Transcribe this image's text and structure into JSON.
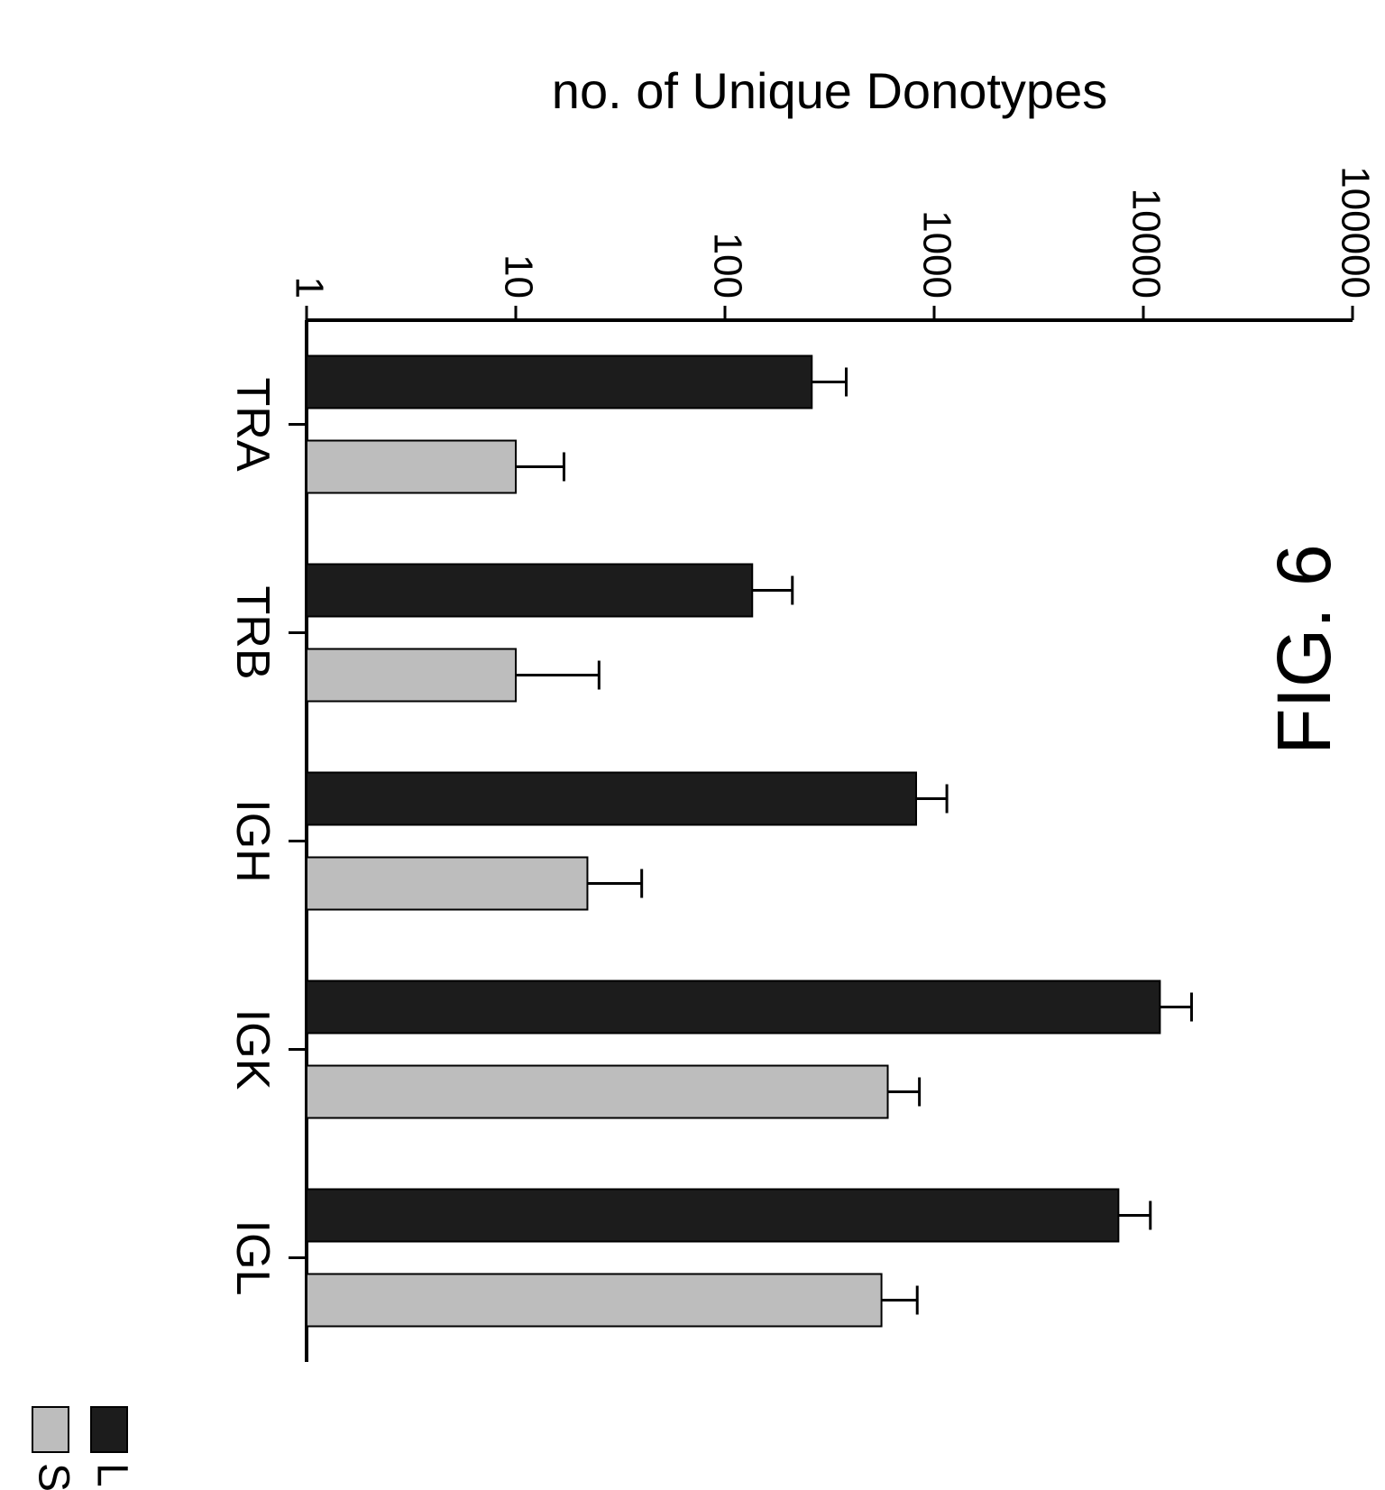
{
  "figure_label": "FIG. 6",
  "chart_data": {
    "type": "bar",
    "orientation": "rotated-90-clockwise",
    "categories": [
      "TRA",
      "TRB",
      "IGH",
      "IGK",
      "IGL"
    ],
    "series": [
      {
        "name": "LN",
        "values": [
          260,
          135,
          820,
          12000,
          7600
        ],
        "error_upper": [
          380,
          210,
          1150,
          17000,
          10800
        ],
        "color": "#1c1c1c"
      },
      {
        "name": "SP",
        "values": [
          10,
          10,
          22,
          600,
          560
        ],
        "error_upper": [
          17,
          25,
          40,
          850,
          830
        ],
        "color": "#bdbdbd"
      }
    ],
    "ylabel": "no. of Unique Donotypes",
    "xlabel": "",
    "yscale": "log",
    "ylim": [
      1,
      100000
    ],
    "yticks": [
      "1",
      "10",
      "100",
      "1000",
      "10000",
      "100000"
    ],
    "legend": {
      "position": "top-right",
      "entries": [
        "LN",
        "SP"
      ]
    },
    "grid": false
  }
}
